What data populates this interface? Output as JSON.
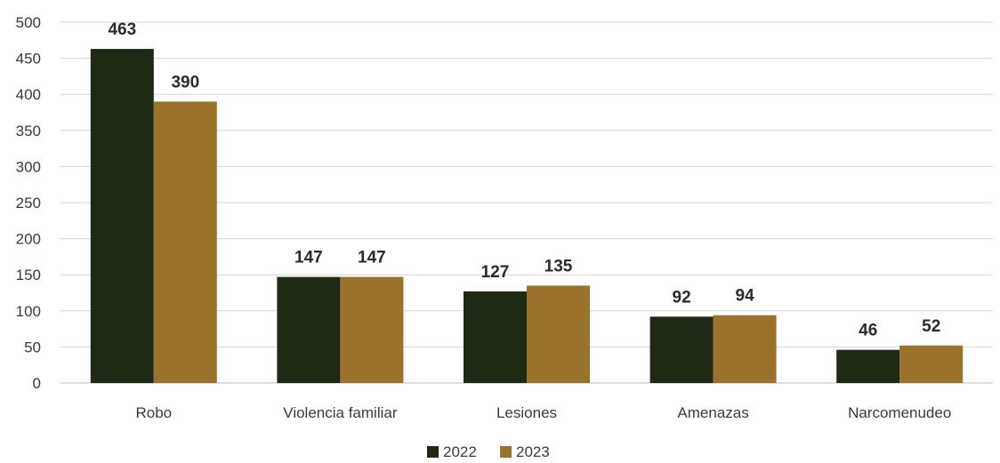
{
  "chart_data": {
    "type": "bar",
    "categories": [
      "Robo",
      "Violencia familiar",
      "Lesiones",
      "Amenazas",
      "Narcomenudeo"
    ],
    "series": [
      {
        "name": "2022",
        "values": [
          463,
          147,
          127,
          92,
          46
        ],
        "color": "#1f2a14"
      },
      {
        "name": "2023",
        "values": [
          390,
          147,
          135,
          94,
          52
        ],
        "color": "#9b722b"
      }
    ],
    "yticks": [
      "0",
      "50",
      "100",
      "150",
      "200",
      "250",
      "300",
      "350",
      "400",
      "450",
      "500"
    ],
    "ylim": [
      0,
      500
    ],
    "grid": true,
    "legend_position": "bottom-center",
    "data_labels": true
  }
}
